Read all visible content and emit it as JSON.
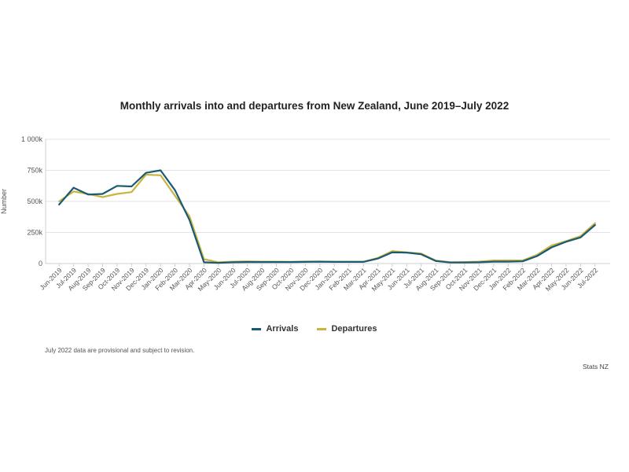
{
  "chart_data": {
    "type": "line",
    "title": "Monthly arrivals into and departures from New Zealand, June 2019–July 2022",
    "ylabel": "Number",
    "xlabel": "",
    "ylim": [
      0,
      1000000
    ],
    "yticks": [
      {
        "value": 0,
        "label": "0"
      },
      {
        "value": 250000,
        "label": "250k"
      },
      {
        "value": 500000,
        "label": "500k"
      },
      {
        "value": 750000,
        "label": "750k"
      },
      {
        "value": 1000000,
        "label": "1 000k"
      }
    ],
    "categories": [
      "Jun-2019",
      "Jul-2019",
      "Aug-2019",
      "Sep-2019",
      "Oct-2019",
      "Nov-2019",
      "Dec-2019",
      "Jan-2020",
      "Feb-2020",
      "Mar-2020",
      "Apr-2020",
      "May-2020",
      "Jun-2020",
      "Jul-2020",
      "Aug-2020",
      "Sep-2020",
      "Oct-2020",
      "Nov-2020",
      "Dec-2020",
      "Jan-2021",
      "Feb-2021",
      "Mar-2021",
      "Apr-2021",
      "May-2021",
      "Jun-2021",
      "Jul-2021",
      "Aug-2021",
      "Sep-2021",
      "Oct-2021",
      "Nov-2021",
      "Dec-2021",
      "Jan-2022",
      "Feb-2022",
      "Mar-2022",
      "Apr-2022",
      "May-2022",
      "Jun-2022",
      "Jul-2022"
    ],
    "series": [
      {
        "name": "Arrivals",
        "color": "#1b5a73",
        "values": [
          475000,
          610000,
          555000,
          560000,
          625000,
          620000,
          730000,
          750000,
          590000,
          350000,
          10000,
          5000,
          10000,
          12000,
          12000,
          12000,
          12000,
          13000,
          15000,
          13000,
          13000,
          13000,
          40000,
          90000,
          88000,
          75000,
          20000,
          8000,
          8000,
          10000,
          15000,
          15000,
          18000,
          60000,
          130000,
          175000,
          210000,
          310000
        ]
      },
      {
        "name": "Departures",
        "color": "#c9b43f",
        "values": [
          500000,
          580000,
          560000,
          535000,
          560000,
          575000,
          715000,
          710000,
          545000,
          380000,
          35000,
          10000,
          15000,
          18000,
          15000,
          15000,
          14000,
          16000,
          16000,
          14000,
          14000,
          14000,
          45000,
          100000,
          90000,
          80000,
          25000,
          10000,
          12000,
          15000,
          25000,
          25000,
          25000,
          70000,
          145000,
          180000,
          220000,
          325000
        ]
      }
    ],
    "grid": true,
    "legend_position": "bottom"
  },
  "legend": {
    "arrivals": "Arrivals",
    "departures": "Departures",
    "arrivals_color": "#1b5a73",
    "departures_color": "#c9b43f"
  },
  "footnote": "July 2022 data are provisional and subject to revision.",
  "source": "Stats NZ"
}
